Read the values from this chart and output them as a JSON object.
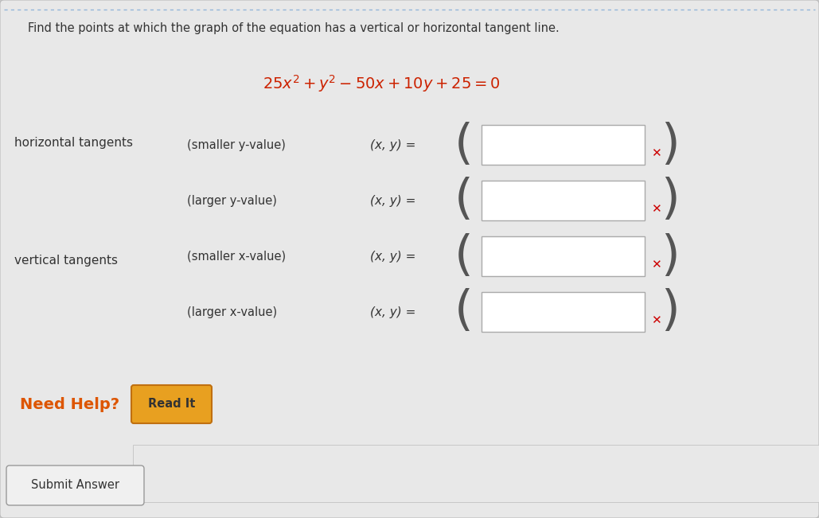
{
  "background_color": "#c8c8c8",
  "panel_color": "#e8e8e8",
  "title_line": "Find the points at which the graph of the equation has a vertical or horizontal tangent line.",
  "equation_color": "#cc2200",
  "horizontal_tangents_label": "horizontal tangents",
  "vertical_tangents_label": "vertical tangents",
  "rows": [
    {
      "label": "(smaller y-value)",
      "prefix": "(x, y) ="
    },
    {
      "label": "(larger y-value)",
      "prefix": "(x, y) ="
    },
    {
      "label": "(smaller x-value)",
      "prefix": "(x, y) ="
    },
    {
      "label": "(larger x-value)",
      "prefix": "(x, y) ="
    }
  ],
  "need_help_color": "#dd5500",
  "read_it_bg": "#e8a020",
  "read_it_border": "#c07010",
  "read_it_text": "#333333",
  "submit_answer_text": "Submit Answer",
  "need_help_text": "Need Help?",
  "read_it_label": "Read It",
  "dotted_line_color": "#8ab0d8",
  "x_mark_color": "#cc0000",
  "text_color": "#333333",
  "paren_color": "#555555",
  "box_border_color": "#aaaaaa",
  "fig_width": 10.29,
  "fig_height": 6.51,
  "dpi": 100
}
